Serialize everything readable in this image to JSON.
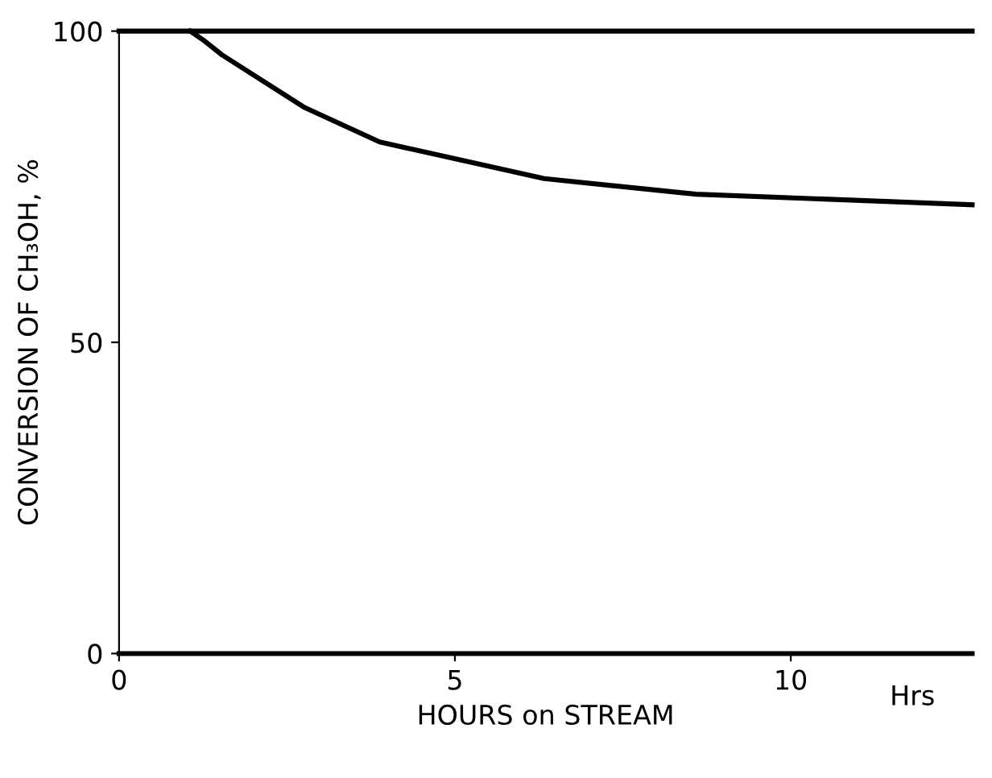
{
  "chart_data": {
    "type": "line",
    "xlabel": "HOURS on STREAM",
    "ylabel": "CONVERSION OF CH₃OH, %",
    "annotations": [
      "Hrs"
    ],
    "series": [
      {
        "color": "#000000",
        "x": [
          0,
          3,
          6,
          9,
          12.7
        ],
        "values": [
          100,
          100,
          100,
          100,
          100
        ]
      },
      {
        "color": "#000000",
        "x": [
          1.06,
          1.25,
          1.53,
          2.75,
          3.88,
          6.33,
          8.59,
          12.7
        ],
        "values": [
          100,
          98.6,
          96.2,
          87.8,
          82.2,
          76.3,
          73.8,
          72.1
        ]
      }
    ],
    "xlim": [
      0,
      12.7
    ],
    "ylim": [
      0,
      100
    ],
    "xticks": [
      0,
      5,
      10
    ],
    "yticks": [
      0,
      50,
      100
    ],
    "grid": false,
    "legend": false,
    "marker": "none",
    "line_style": "solid"
  }
}
